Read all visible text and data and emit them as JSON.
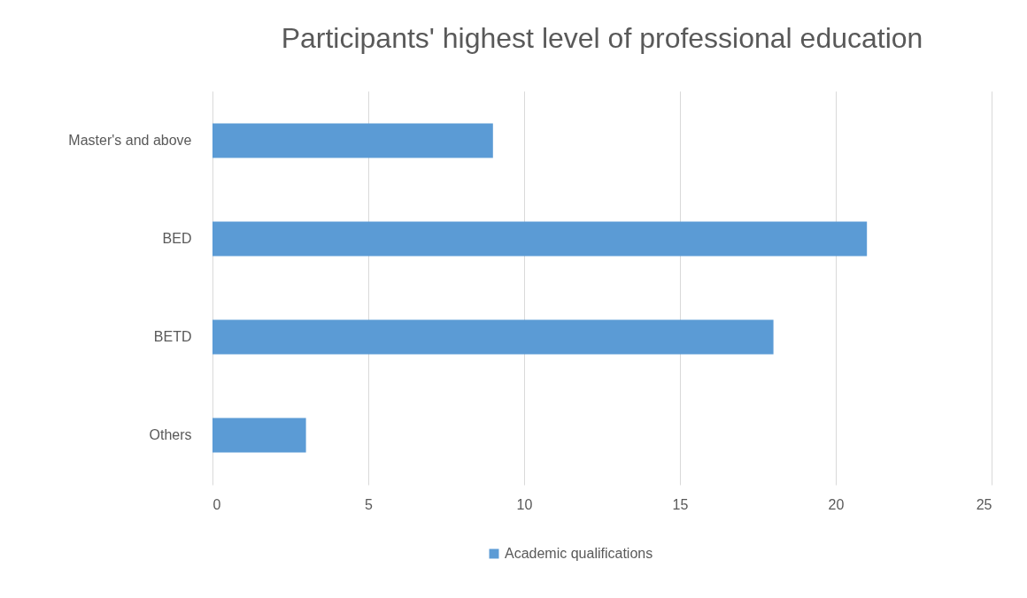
{
  "chart_data": {
    "type": "bar",
    "orientation": "horizontal",
    "title": "Participants' highest level of professional education",
    "categories": [
      "Master's and above",
      "BED",
      "BETD",
      "Others"
    ],
    "series": [
      {
        "name": "Academic qualifications",
        "color": "#5b9bd5",
        "values": [
          9,
          21,
          18,
          3
        ]
      }
    ],
    "xlim": [
      0,
      25
    ],
    "xticks": [
      0,
      5,
      10,
      15,
      20,
      25
    ],
    "grid": "x",
    "legend": "bottom"
  }
}
